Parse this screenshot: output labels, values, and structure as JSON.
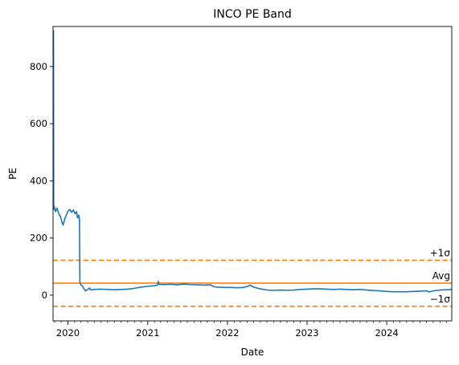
{
  "chart_data": {
    "type": "line",
    "title": "INCO PE Band",
    "xlabel": "Date",
    "ylabel": "PE",
    "x_range": [
      "2019-10-25",
      "2024-10-25"
    ],
    "ylim": [
      -90,
      940
    ],
    "x_ticks": [
      "2020",
      "2021",
      "2022",
      "2023",
      "2024"
    ],
    "y_ticks": [
      0,
      200,
      400,
      600,
      800
    ],
    "grid": false,
    "colors": {
      "series": "#1f77b4",
      "band": "#ff7f0e"
    },
    "series": [
      {
        "points": [
          [
            "2019-10-25",
            320
          ],
          [
            "2019-10-27",
            925
          ],
          [
            "2019-10-28",
            300
          ],
          [
            "2019-10-31",
            310
          ],
          [
            "2019-11-05",
            292
          ],
          [
            "2019-11-12",
            305
          ],
          [
            "2019-11-20",
            285
          ],
          [
            "2019-11-28",
            275
          ],
          [
            "2019-12-05",
            255
          ],
          [
            "2019-12-10",
            245
          ],
          [
            "2019-12-18",
            268
          ],
          [
            "2019-12-26",
            282
          ],
          [
            "2020-01-02",
            295
          ],
          [
            "2020-01-10",
            300
          ],
          [
            "2020-01-18",
            290
          ],
          [
            "2020-01-26",
            298
          ],
          [
            "2020-02-03",
            285
          ],
          [
            "2020-02-10",
            292
          ],
          [
            "2020-02-14",
            270
          ],
          [
            "2020-02-20",
            280
          ],
          [
            "2020-02-23",
            268
          ],
          [
            "2020-02-25",
            45
          ],
          [
            "2020-03-01",
            35
          ],
          [
            "2020-03-08",
            32
          ],
          [
            "2020-03-15",
            22
          ],
          [
            "2020-03-22",
            15
          ],
          [
            "2020-04-01",
            20
          ],
          [
            "2020-04-10",
            25
          ],
          [
            "2020-04-15",
            18
          ],
          [
            "2020-05-01",
            20
          ],
          [
            "2020-06-01",
            21
          ],
          [
            "2020-07-01",
            20
          ],
          [
            "2020-08-01",
            19
          ],
          [
            "2020-09-01",
            20
          ],
          [
            "2020-10-01",
            21
          ],
          [
            "2020-11-01",
            24
          ],
          [
            "2020-12-01",
            28
          ],
          [
            "2021-01-01",
            31
          ],
          [
            "2021-02-01",
            33
          ],
          [
            "2021-02-15",
            35
          ],
          [
            "2021-02-18",
            48
          ],
          [
            "2021-02-22",
            38
          ],
          [
            "2021-03-15",
            37
          ],
          [
            "2021-04-15",
            38
          ],
          [
            "2021-05-15",
            36
          ],
          [
            "2021-06-15",
            39
          ],
          [
            "2021-07-15",
            37
          ],
          [
            "2021-08-15",
            36
          ],
          [
            "2021-09-15",
            35
          ],
          [
            "2021-10-15",
            36
          ],
          [
            "2021-10-31",
            30
          ],
          [
            "2021-11-15",
            28
          ],
          [
            "2021-12-15",
            27
          ],
          [
            "2022-01-15",
            27
          ],
          [
            "2022-02-15",
            26
          ],
          [
            "2022-03-15",
            27
          ],
          [
            "2022-04-01",
            30
          ],
          [
            "2022-04-15",
            35
          ],
          [
            "2022-05-01",
            28
          ],
          [
            "2022-06-01",
            22
          ],
          [
            "2022-07-01",
            18
          ],
          [
            "2022-08-01",
            17
          ],
          [
            "2022-09-01",
            18
          ],
          [
            "2022-10-01",
            17
          ],
          [
            "2022-11-01",
            18
          ],
          [
            "2022-12-01",
            20
          ],
          [
            "2023-01-01",
            21
          ],
          [
            "2023-02-01",
            22
          ],
          [
            "2023-03-01",
            22
          ],
          [
            "2023-04-01",
            21
          ],
          [
            "2023-05-01",
            20
          ],
          [
            "2023-06-01",
            21
          ],
          [
            "2023-07-01",
            20
          ],
          [
            "2023-08-01",
            19
          ],
          [
            "2023-09-01",
            20
          ],
          [
            "2023-10-01",
            18
          ],
          [
            "2023-11-01",
            16
          ],
          [
            "2023-12-01",
            15
          ],
          [
            "2024-01-01",
            13
          ],
          [
            "2024-02-01",
            12
          ],
          [
            "2024-03-01",
            12
          ],
          [
            "2024-04-01",
            12
          ],
          [
            "2024-05-01",
            13
          ],
          [
            "2024-06-01",
            14
          ],
          [
            "2024-07-01",
            15
          ],
          [
            "2024-07-15",
            11
          ],
          [
            "2024-08-01",
            15
          ],
          [
            "2024-09-01",
            18
          ],
          [
            "2024-10-01",
            19
          ],
          [
            "2024-10-25",
            20
          ]
        ]
      }
    ],
    "bands": [
      {
        "label": "+1σ",
        "value": 122,
        "style": "dashed"
      },
      {
        "label": "Avg",
        "value": 42,
        "style": "solid"
      },
      {
        "label": "−1σ",
        "value": -39,
        "style": "dashed"
      }
    ]
  }
}
